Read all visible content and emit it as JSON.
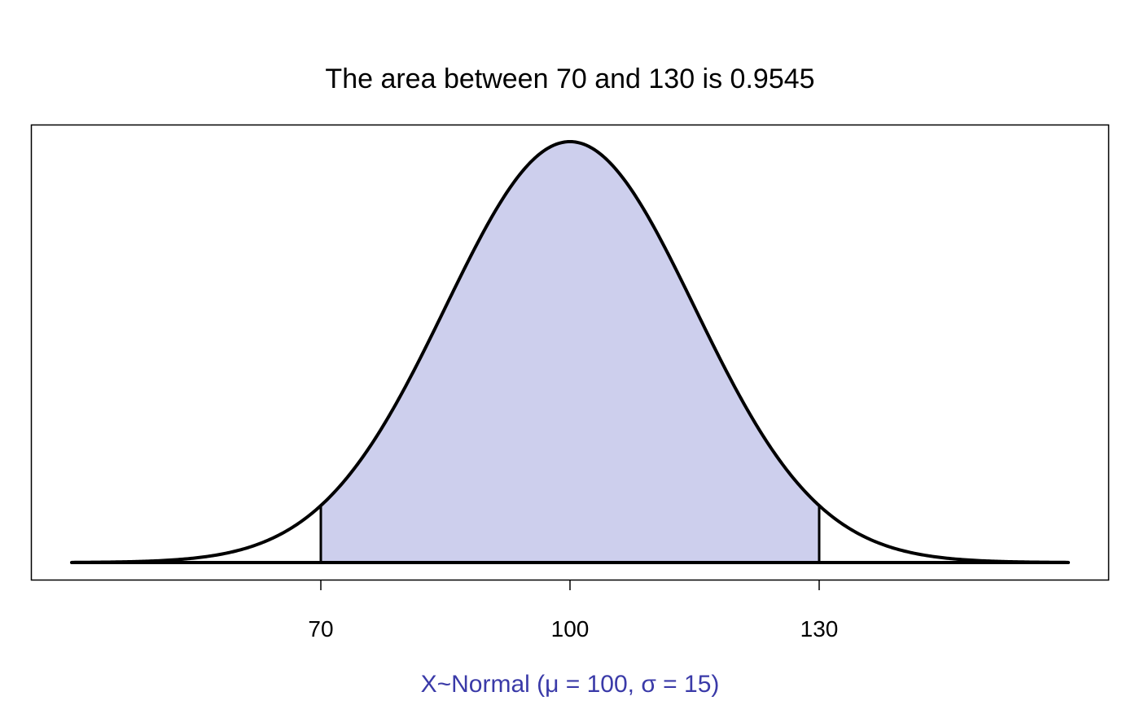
{
  "chart_data": {
    "type": "area",
    "title": "The area between 70 and 130 is 0.9545",
    "xlabel": "X~Normal (μ = 100, σ = 15)",
    "ylabel": "",
    "distribution": {
      "name": "Normal",
      "mean": 100,
      "sd": 15
    },
    "shaded_interval": [
      70,
      130
    ],
    "shaded_area": 0.9545,
    "xlim": [
      40,
      160
    ],
    "x_ticks": [
      70,
      100,
      130
    ],
    "x_tick_labels": [
      "70",
      "100",
      "130"
    ],
    "y_axis_visible": false,
    "grid": false,
    "colors": {
      "fill": "#cdcfed",
      "curve": "#000000",
      "xlabel": "#3a3aa8"
    }
  }
}
